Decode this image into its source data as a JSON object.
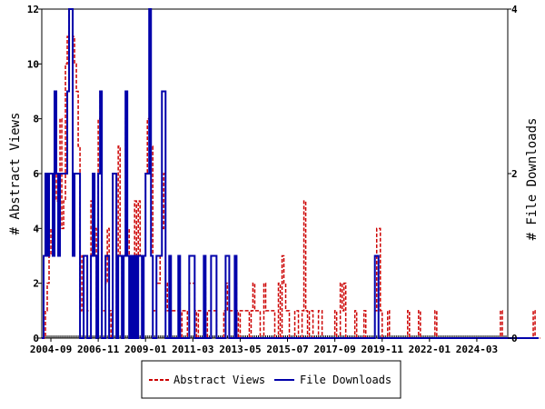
{
  "chart_data": {
    "type": "line",
    "x_range": [
      "2004-04",
      "2025-08"
    ],
    "x_tick_labels": [
      "2004-09",
      "2006-11",
      "2009-01",
      "2011-03",
      "2013-05",
      "2015-07",
      "2017-09",
      "2019-11",
      "2022-01",
      "2024-03"
    ],
    "x_tick_months": [
      "2004-09",
      "2006-11",
      "2009-01",
      "2011-03",
      "2013-05",
      "2015-07",
      "2017-09",
      "2019-11",
      "2022-01",
      "2024-03"
    ],
    "left_axis": {
      "label": "# Abstract Views",
      "ylim": [
        0,
        12
      ],
      "ticks": [
        0,
        2,
        4,
        6,
        8,
        10,
        12
      ]
    },
    "right_axis": {
      "label": "# File Downloads",
      "ylim": [
        0,
        4
      ],
      "ticks": [
        0,
        2,
        4
      ]
    },
    "legend_position": "bottom-center",
    "grid": false,
    "series": [
      {
        "name": "Abstract Views",
        "axis": "left",
        "color": "#cc0000",
        "style": "dashed",
        "start": "2004-04",
        "values": [
          0,
          0,
          1,
          2,
          3,
          4,
          3,
          6,
          5,
          5,
          8,
          4,
          5,
          10,
          11,
          12,
          12,
          11,
          10,
          9,
          7,
          1,
          3,
          3,
          3,
          1,
          1,
          5,
          5,
          4,
          1,
          8,
          9,
          1,
          1,
          2,
          4,
          1,
          0,
          6,
          6,
          1,
          7,
          3,
          2,
          3,
          8,
          4,
          3,
          3,
          1,
          5,
          1,
          5,
          3,
          1,
          3,
          6,
          8,
          9,
          7,
          1,
          1,
          2,
          2,
          3,
          4,
          6,
          2,
          1,
          2,
          1,
          1,
          1,
          1,
          2,
          0,
          1,
          1,
          1,
          0,
          2,
          2,
          2,
          1,
          0,
          1,
          1,
          1,
          2,
          0,
          1,
          1,
          1,
          1,
          1,
          0,
          0,
          0,
          0,
          1,
          2,
          1,
          1,
          1,
          1,
          2,
          1,
          0,
          1,
          1,
          1,
          1,
          1,
          0,
          1,
          2,
          1,
          1,
          1,
          0,
          0,
          2,
          1,
          1,
          1,
          1,
          1,
          0,
          0,
          2,
          0,
          3,
          2,
          1,
          1,
          0,
          0,
          0,
          1,
          1,
          0,
          0,
          1,
          5,
          1,
          0,
          1,
          1,
          0,
          0,
          0,
          1,
          1,
          0,
          0,
          0,
          0,
          0,
          0,
          0,
          1,
          0,
          0,
          2,
          1,
          2,
          0,
          0,
          0,
          0,
          0,
          1,
          0,
          0,
          0,
          0,
          1,
          0,
          0,
          0,
          0,
          0,
          1,
          4,
          4,
          1,
          0,
          0,
          0,
          1,
          0,
          0,
          0,
          0,
          0,
          0,
          0,
          0,
          0,
          0,
          1,
          0,
          0,
          0,
          0,
          0,
          1,
          0,
          0,
          0,
          0,
          0,
          0,
          0,
          0,
          1,
          0,
          0,
          0,
          0,
          0,
          0,
          0,
          0,
          0,
          0,
          0,
          0,
          0,
          0,
          0,
          0,
          0,
          0,
          0,
          0,
          0,
          0,
          0,
          0,
          0,
          0,
          0,
          0,
          0,
          0,
          0,
          0,
          0,
          0,
          0,
          1,
          0,
          0,
          0,
          0,
          0,
          0,
          0,
          0,
          0,
          0,
          0,
          0,
          0,
          0,
          0,
          0,
          0,
          1,
          0,
          0,
          0
        ]
      },
      {
        "name": "File Downloads",
        "axis": "right",
        "color": "#0000aa",
        "style": "solid",
        "start": "2004-04",
        "values": [
          0,
          1,
          2,
          1,
          2,
          2,
          1,
          3,
          2,
          1,
          2,
          2,
          2,
          2,
          3,
          4,
          4,
          1,
          2,
          2,
          2,
          0,
          0,
          1,
          1,
          0,
          0,
          1,
          2,
          1,
          0,
          2,
          3,
          0,
          0,
          1,
          1,
          0,
          0,
          2,
          2,
          0,
          1,
          1,
          0,
          1,
          3,
          1,
          0,
          1,
          0,
          1,
          0,
          1,
          1,
          0,
          1,
          2,
          2,
          4,
          1,
          0,
          0,
          1,
          1,
          1,
          3,
          3,
          0,
          0,
          1,
          0,
          0,
          0,
          0,
          1,
          0,
          0,
          0,
          0,
          0,
          1,
          1,
          1,
          0,
          0,
          0,
          0,
          0,
          1,
          0,
          0,
          0,
          1,
          1,
          1,
          0,
          0,
          0,
          0,
          0,
          1,
          1,
          0,
          0,
          0,
          1,
          0,
          0,
          0,
          0,
          0,
          0,
          0,
          0,
          0,
          0,
          0,
          0,
          0,
          0,
          0,
          0,
          0,
          0,
          0,
          0,
          0,
          0,
          0,
          0,
          0,
          0,
          0,
          0,
          0,
          0,
          0,
          0,
          0,
          0,
          0,
          0,
          0,
          0,
          0,
          0,
          0,
          0,
          0,
          0,
          0,
          0,
          0,
          0,
          0,
          0,
          0,
          0,
          0,
          0,
          0,
          0,
          0,
          0,
          0,
          0,
          0,
          0,
          0,
          0,
          0,
          0,
          0,
          0,
          0,
          0,
          0,
          0,
          0,
          0,
          0,
          0,
          1,
          1,
          0,
          0,
          0,
          0,
          0,
          0,
          0,
          0,
          0,
          0,
          0,
          0,
          0,
          0,
          0,
          0,
          0,
          0,
          0,
          0,
          0,
          0,
          0,
          0,
          0,
          0,
          0,
          0,
          0,
          0,
          0,
          0,
          0,
          0,
          0,
          0,
          0,
          0,
          0,
          0,
          0,
          0,
          0,
          0,
          0,
          0,
          0,
          0,
          0,
          0,
          0,
          0,
          0,
          0,
          0,
          0,
          0,
          0,
          0,
          0,
          0,
          0,
          0,
          0,
          0,
          0,
          0,
          0,
          0,
          0,
          0,
          0,
          0,
          0,
          0,
          0,
          0,
          0,
          0,
          0,
          0,
          0,
          0,
          0,
          0,
          0,
          0,
          0
        ]
      }
    ]
  }
}
